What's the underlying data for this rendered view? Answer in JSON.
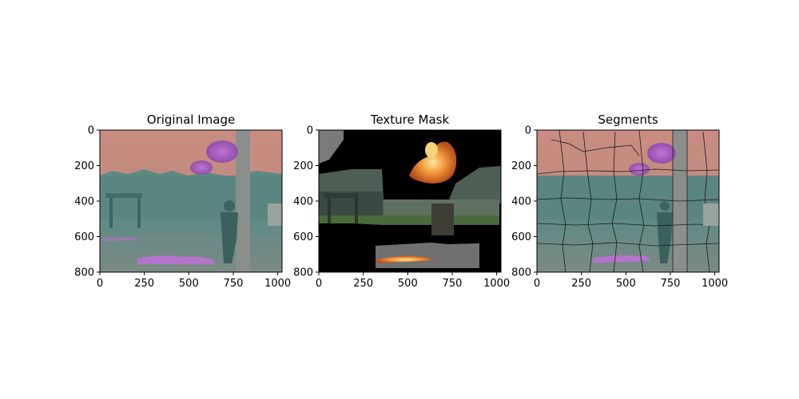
{
  "figure": {
    "panels": [
      {
        "title": "Original Image",
        "x_ticks": [
          "0",
          "250",
          "500",
          "750",
          "1000"
        ],
        "y_ticks": [
          "0",
          "200",
          "400",
          "600",
          "800"
        ]
      },
      {
        "title": "Texture Mask",
        "x_ticks": [
          "0",
          "250",
          "500",
          "750",
          "1000"
        ],
        "y_ticks": [
          "0",
          "200",
          "400",
          "600",
          "800"
        ]
      },
      {
        "title": "Segments",
        "x_ticks": [
          "0",
          "250",
          "500",
          "750",
          "1000"
        ],
        "y_ticks": [
          "0",
          "200",
          "400",
          "600",
          "800"
        ]
      }
    ],
    "image_extent": {
      "width": 1024,
      "height": 800
    }
  }
}
